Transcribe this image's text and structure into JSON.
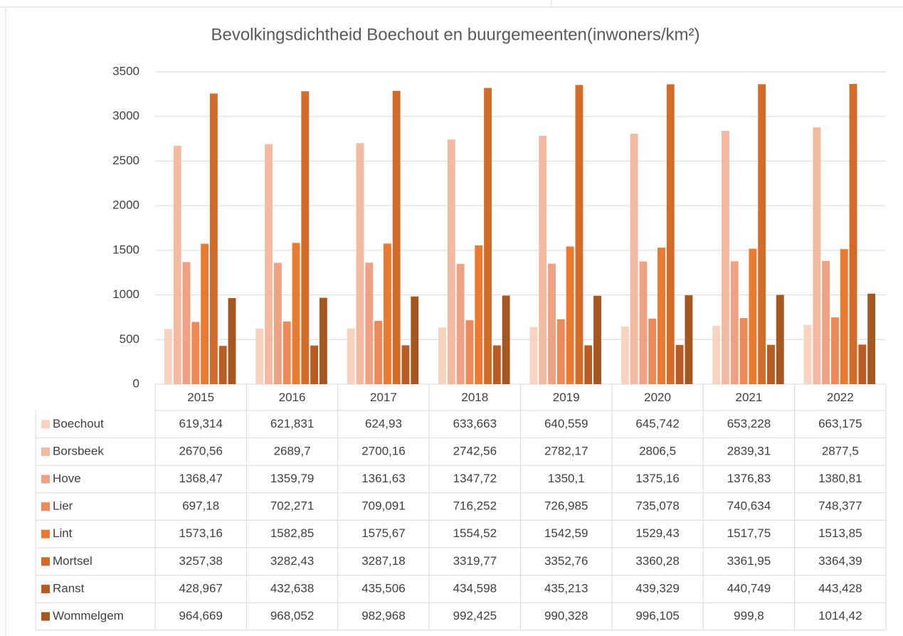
{
  "chart_data": {
    "type": "bar",
    "title": "Bevolkingsdichtheid Boechout en buurgemeenten(inwoners/km²)",
    "categories": [
      "2015",
      "2016",
      "2017",
      "2018",
      "2019",
      "2020",
      "2021",
      "2022"
    ],
    "ylim": [
      0,
      3500
    ],
    "yticks": [
      0,
      500,
      1000,
      1500,
      2000,
      2500,
      3000,
      3500
    ],
    "grid": true,
    "series": [
      {
        "name": "Boechout",
        "color": "#f8d3c0",
        "values": [
          619.314,
          621.831,
          624.93,
          633.663,
          640.559,
          645.742,
          653.228,
          663.175
        ],
        "value_labels": [
          "619,314",
          "621,831",
          "624,93",
          "633,663",
          "640,559",
          "645,742",
          "653,228",
          "663,175"
        ]
      },
      {
        "name": "Borsbeek",
        "color": "#f3b9a1",
        "values": [
          2670.56,
          2689.7,
          2700.16,
          2742.56,
          2782.17,
          2806.5,
          2839.31,
          2877.5
        ],
        "value_labels": [
          "2670,56",
          "2689,7",
          "2700,16",
          "2742,56",
          "2782,17",
          "2806,5",
          "2839,31",
          "2877,5"
        ]
      },
      {
        "name": "Hove",
        "color": "#eea283",
        "values": [
          1368.47,
          1359.79,
          1361.63,
          1347.72,
          1350.1,
          1375.16,
          1376.83,
          1380.81
        ],
        "value_labels": [
          "1368,47",
          "1359,79",
          "1361,63",
          "1347,72",
          "1350,1",
          "1375,16",
          "1376,83",
          "1380,81"
        ]
      },
      {
        "name": "Lier",
        "color": "#ee8a58",
        "values": [
          697.18,
          702.271,
          709.091,
          716.252,
          726.985,
          735.078,
          740.634,
          748.377
        ],
        "value_labels": [
          "697,18",
          "702,271",
          "709,091",
          "716,252",
          "726,985",
          "735,078",
          "740,634",
          "748,377"
        ]
      },
      {
        "name": "Lint",
        "color": "#ea7a30",
        "values": [
          1573.16,
          1582.85,
          1575.67,
          1554.52,
          1542.59,
          1529.43,
          1517.75,
          1513.85
        ],
        "value_labels": [
          "1573,16",
          "1582,85",
          "1575,67",
          "1554,52",
          "1542,59",
          "1529,43",
          "1517,75",
          "1513,85"
        ]
      },
      {
        "name": "Mortsel",
        "color": "#d46c29",
        "values": [
          3257.38,
          3282.43,
          3287.18,
          3319.77,
          3352.76,
          3360.28,
          3361.95,
          3364.39
        ],
        "value_labels": [
          "3257,38",
          "3282,43",
          "3287,18",
          "3319,77",
          "3352,76",
          "3360,28",
          "3361,95",
          "3364,39"
        ]
      },
      {
        "name": "Ranst",
        "color": "#b85c23",
        "values": [
          428.967,
          432.638,
          435.506,
          434.598,
          435.213,
          439.329,
          440.749,
          443.428
        ],
        "value_labels": [
          "428,967",
          "432,638",
          "435,506",
          "434,598",
          "435,213",
          "439,329",
          "440,749",
          "443,428"
        ]
      },
      {
        "name": "Wommelgem",
        "color": "#a6561f",
        "values": [
          964.669,
          968.052,
          982.968,
          992.425,
          990.328,
          996.105,
          999.8,
          1014.42
        ],
        "value_labels": [
          "964,669",
          "968,052",
          "982,968",
          "992,425",
          "990,328",
          "996,105",
          "999,8",
          "1014,42"
        ]
      }
    ]
  }
}
